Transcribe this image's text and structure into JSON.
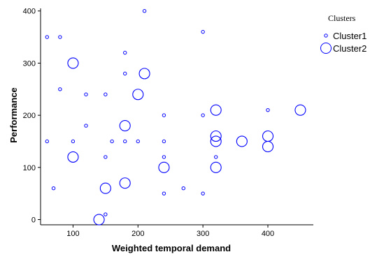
{
  "chart_data": {
    "type": "scatter",
    "xlabel": "Weighted temporal demand",
    "ylabel": "Performance",
    "xlim": [
      50,
      470
    ],
    "ylim": [
      -10,
      405
    ],
    "x_ticks": [
      100,
      200,
      300,
      400
    ],
    "y_ticks": [
      0,
      100,
      200,
      300,
      400
    ],
    "grid": false,
    "legend": {
      "title": "Clusters",
      "position": "top-right"
    },
    "marker": "open-circle",
    "color": "#0000ff",
    "series": [
      {
        "name": "Cluster1",
        "points": [
          [
            60,
            350
          ],
          [
            80,
            350
          ],
          [
            60,
            150
          ],
          [
            70,
            60
          ],
          [
            80,
            250
          ],
          [
            100,
            150
          ],
          [
            120,
            240
          ],
          [
            120,
            180
          ],
          [
            150,
            240
          ],
          [
            150,
            120
          ],
          [
            150,
            10
          ],
          [
            160,
            150
          ],
          [
            180,
            320
          ],
          [
            180,
            280
          ],
          [
            180,
            150
          ],
          [
            200,
            150
          ],
          [
            210,
            400
          ],
          [
            240,
            200
          ],
          [
            240,
            150
          ],
          [
            240,
            120
          ],
          [
            240,
            50
          ],
          [
            270,
            60
          ],
          [
            300,
            360
          ],
          [
            300,
            200
          ],
          [
            300,
            50
          ],
          [
            320,
            120
          ],
          [
            400,
            210
          ]
        ]
      },
      {
        "name": "Cluster2",
        "points": [
          [
            100,
            300
          ],
          [
            100,
            120
          ],
          [
            140,
            0
          ],
          [
            150,
            60
          ],
          [
            180,
            180
          ],
          [
            180,
            70
          ],
          [
            200,
            240
          ],
          [
            210,
            280
          ],
          [
            240,
            100
          ],
          [
            320,
            210
          ],
          [
            320,
            160
          ],
          [
            320,
            150
          ],
          [
            320,
            100
          ],
          [
            360,
            150
          ],
          [
            400,
            160
          ],
          [
            400,
            140
          ],
          [
            450,
            210
          ]
        ]
      }
    ]
  }
}
